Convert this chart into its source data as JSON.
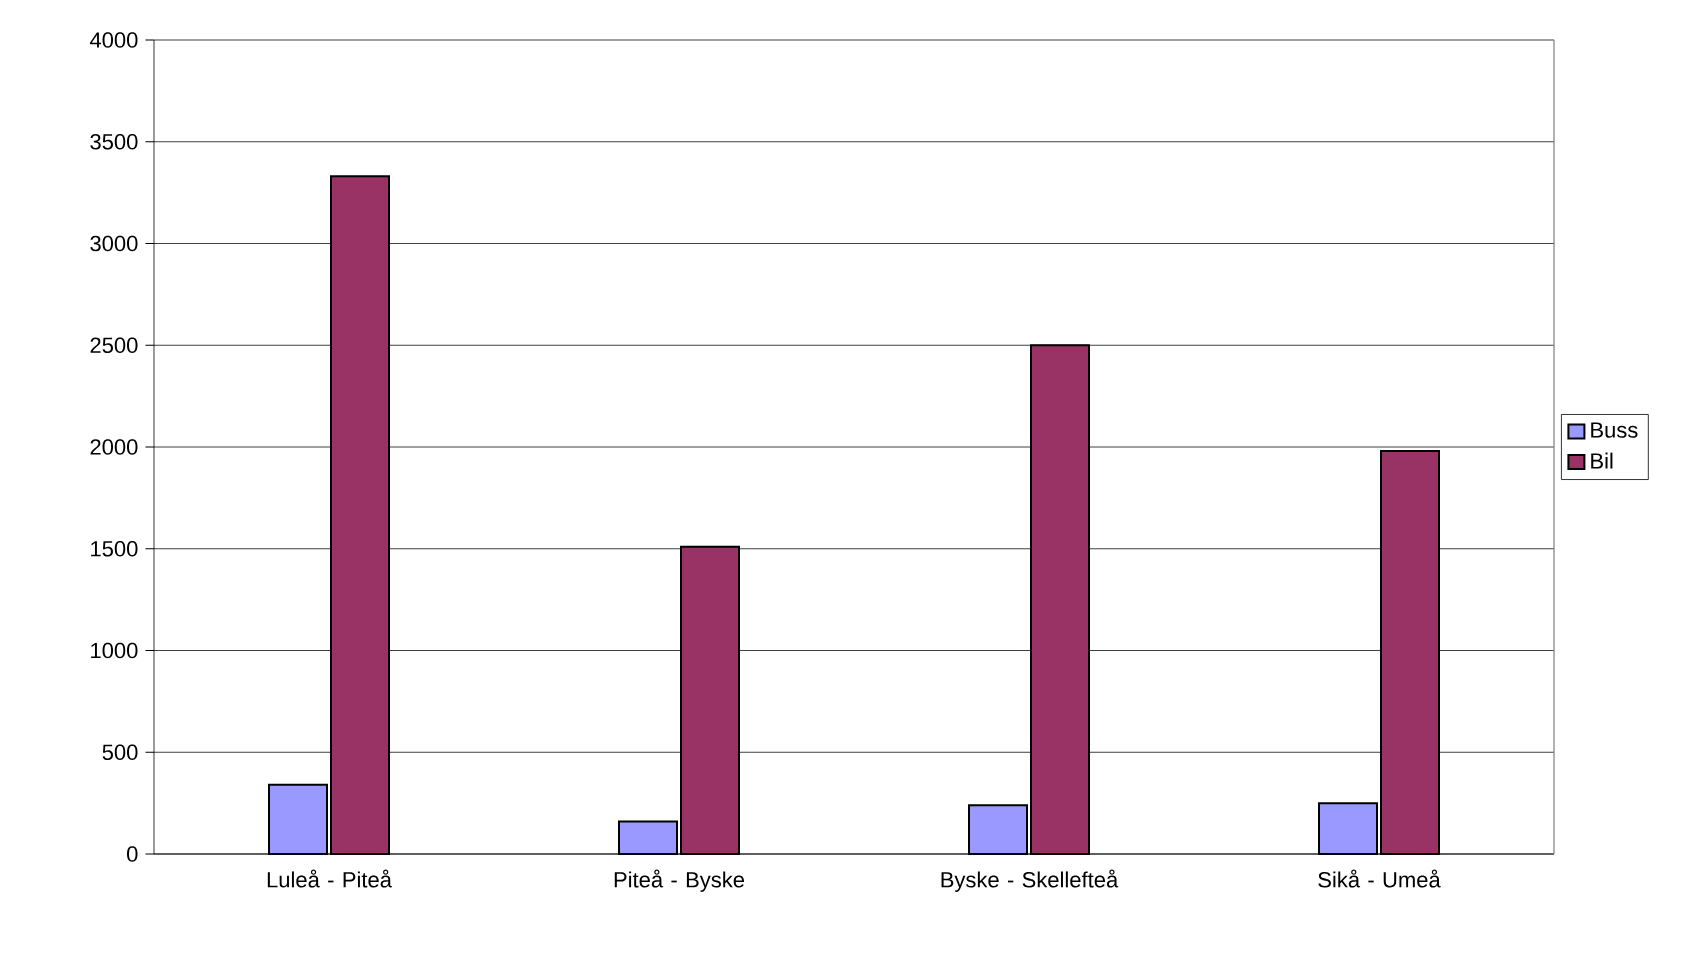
{
  "chart_data": {
    "type": "bar",
    "categories": [
      "Luleå - Piteå",
      "Piteå - Byske",
      "Byske - Skellefteå",
      "Sikå - Umeå"
    ],
    "series": [
      {
        "name": "Buss",
        "color": "#9999ff",
        "values": [
          340,
          160,
          240,
          250
        ]
      },
      {
        "name": "Bil",
        "color": "#993366",
        "values": [
          3330,
          1510,
          2500,
          1980
        ]
      }
    ],
    "ylim": [
      0,
      4000
    ],
    "yticks": [
      0,
      500,
      1000,
      1500,
      2000,
      2500,
      3000,
      3500,
      4000
    ],
    "grid": "y",
    "legend": "right"
  }
}
